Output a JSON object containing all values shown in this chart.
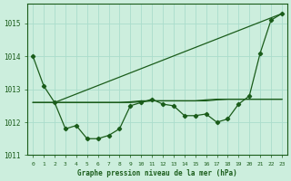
{
  "title": "Graphe pression niveau de la mer (hPa)",
  "x": [
    0,
    1,
    2,
    3,
    4,
    5,
    6,
    7,
    8,
    9,
    10,
    11,
    12,
    13,
    14,
    15,
    16,
    17,
    18,
    19,
    20,
    21,
    22,
    23
  ],
  "line_main": [
    1014.0,
    1013.1,
    1012.6,
    1011.8,
    1011.9,
    1011.5,
    1011.5,
    1011.6,
    1011.8,
    1012.5,
    1012.6,
    1012.7,
    1012.55,
    1012.5,
    1012.2,
    1012.2,
    1012.25,
    1012.0,
    1012.1,
    1012.55,
    1012.8,
    1014.1,
    1015.1,
    1015.3
  ],
  "line_flat1": [
    1012.6,
    1012.6,
    1012.6,
    1012.6,
    1012.6,
    1012.6,
    1012.6,
    1012.6,
    1012.6,
    1012.6,
    1012.62,
    1012.65,
    1012.65,
    1012.65,
    1012.65,
    1012.65,
    1012.68,
    1012.7,
    1012.7,
    1012.7,
    1012.7,
    1012.7,
    1012.7,
    1012.7
  ],
  "line_flat2": [
    1012.6,
    1012.6,
    1012.6,
    1012.6,
    1012.6,
    1012.6,
    1012.6,
    1012.6,
    1012.6,
    1012.62,
    1012.65,
    1012.65,
    1012.65,
    1012.65,
    1012.65,
    1012.65,
    1012.65,
    1012.68,
    1012.7,
    1012.7,
    1012.7,
    1012.7,
    1012.7,
    1012.7
  ],
  "trend_x": [
    2,
    23
  ],
  "trend_y": [
    1012.6,
    1015.3
  ],
  "line_color": "#1a5c1a",
  "bg_color": "#cceedd",
  "grid_color": "#aaddcc",
  "ylim": [
    1011.0,
    1015.6
  ],
  "yticks": [
    1011,
    1012,
    1013,
    1014,
    1015
  ],
  "xticks": [
    0,
    1,
    2,
    3,
    4,
    5,
    6,
    7,
    8,
    9,
    10,
    11,
    12,
    13,
    14,
    15,
    16,
    17,
    18,
    19,
    20,
    21,
    22,
    23
  ]
}
